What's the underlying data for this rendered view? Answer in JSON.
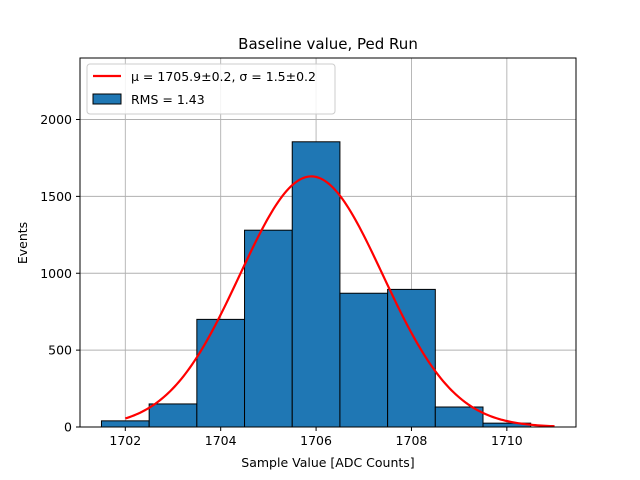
{
  "chart_data": {
    "type": "bar",
    "title": "Baseline value, Ped Run",
    "xlabel": "Sample Value [ADC Counts]",
    "ylabel": "Events",
    "xlim": [
      1701.05,
      1711.45
    ],
    "ylim": [
      0,
      2400
    ],
    "xticks": [
      1702,
      1704,
      1706,
      1708,
      1710
    ],
    "yticks": [
      0,
      500,
      1000,
      1500,
      2000
    ],
    "grid": true,
    "legend_position": "top-left",
    "bar_color": "#1f77b4",
    "fit_color": "#ff0000",
    "bins": [
      {
        "left": 1701.5,
        "right": 1702.5,
        "count": 40
      },
      {
        "left": 1702.5,
        "right": 1703.5,
        "count": 150
      },
      {
        "left": 1703.5,
        "right": 1704.5,
        "count": 700
      },
      {
        "left": 1704.5,
        "right": 1705.5,
        "count": 1280
      },
      {
        "left": 1705.5,
        "right": 1706.5,
        "count": 1855
      },
      {
        "left": 1706.5,
        "right": 1707.5,
        "count": 870
      },
      {
        "left": 1707.5,
        "right": 1708.5,
        "count": 895
      },
      {
        "left": 1708.5,
        "right": 1709.5,
        "count": 130
      },
      {
        "left": 1709.5,
        "right": 1710.5,
        "count": 25
      }
    ],
    "fit": {
      "mean": 1705.9,
      "sigma": 1.5,
      "amplitude": 1630,
      "x_range": [
        1702.0,
        1711.0
      ]
    },
    "legend": [
      {
        "label": "μ = 1705.9±0.2, σ = 1.5±0.2",
        "kind": "line"
      },
      {
        "label": "RMS = 1.43",
        "kind": "patch"
      }
    ]
  }
}
